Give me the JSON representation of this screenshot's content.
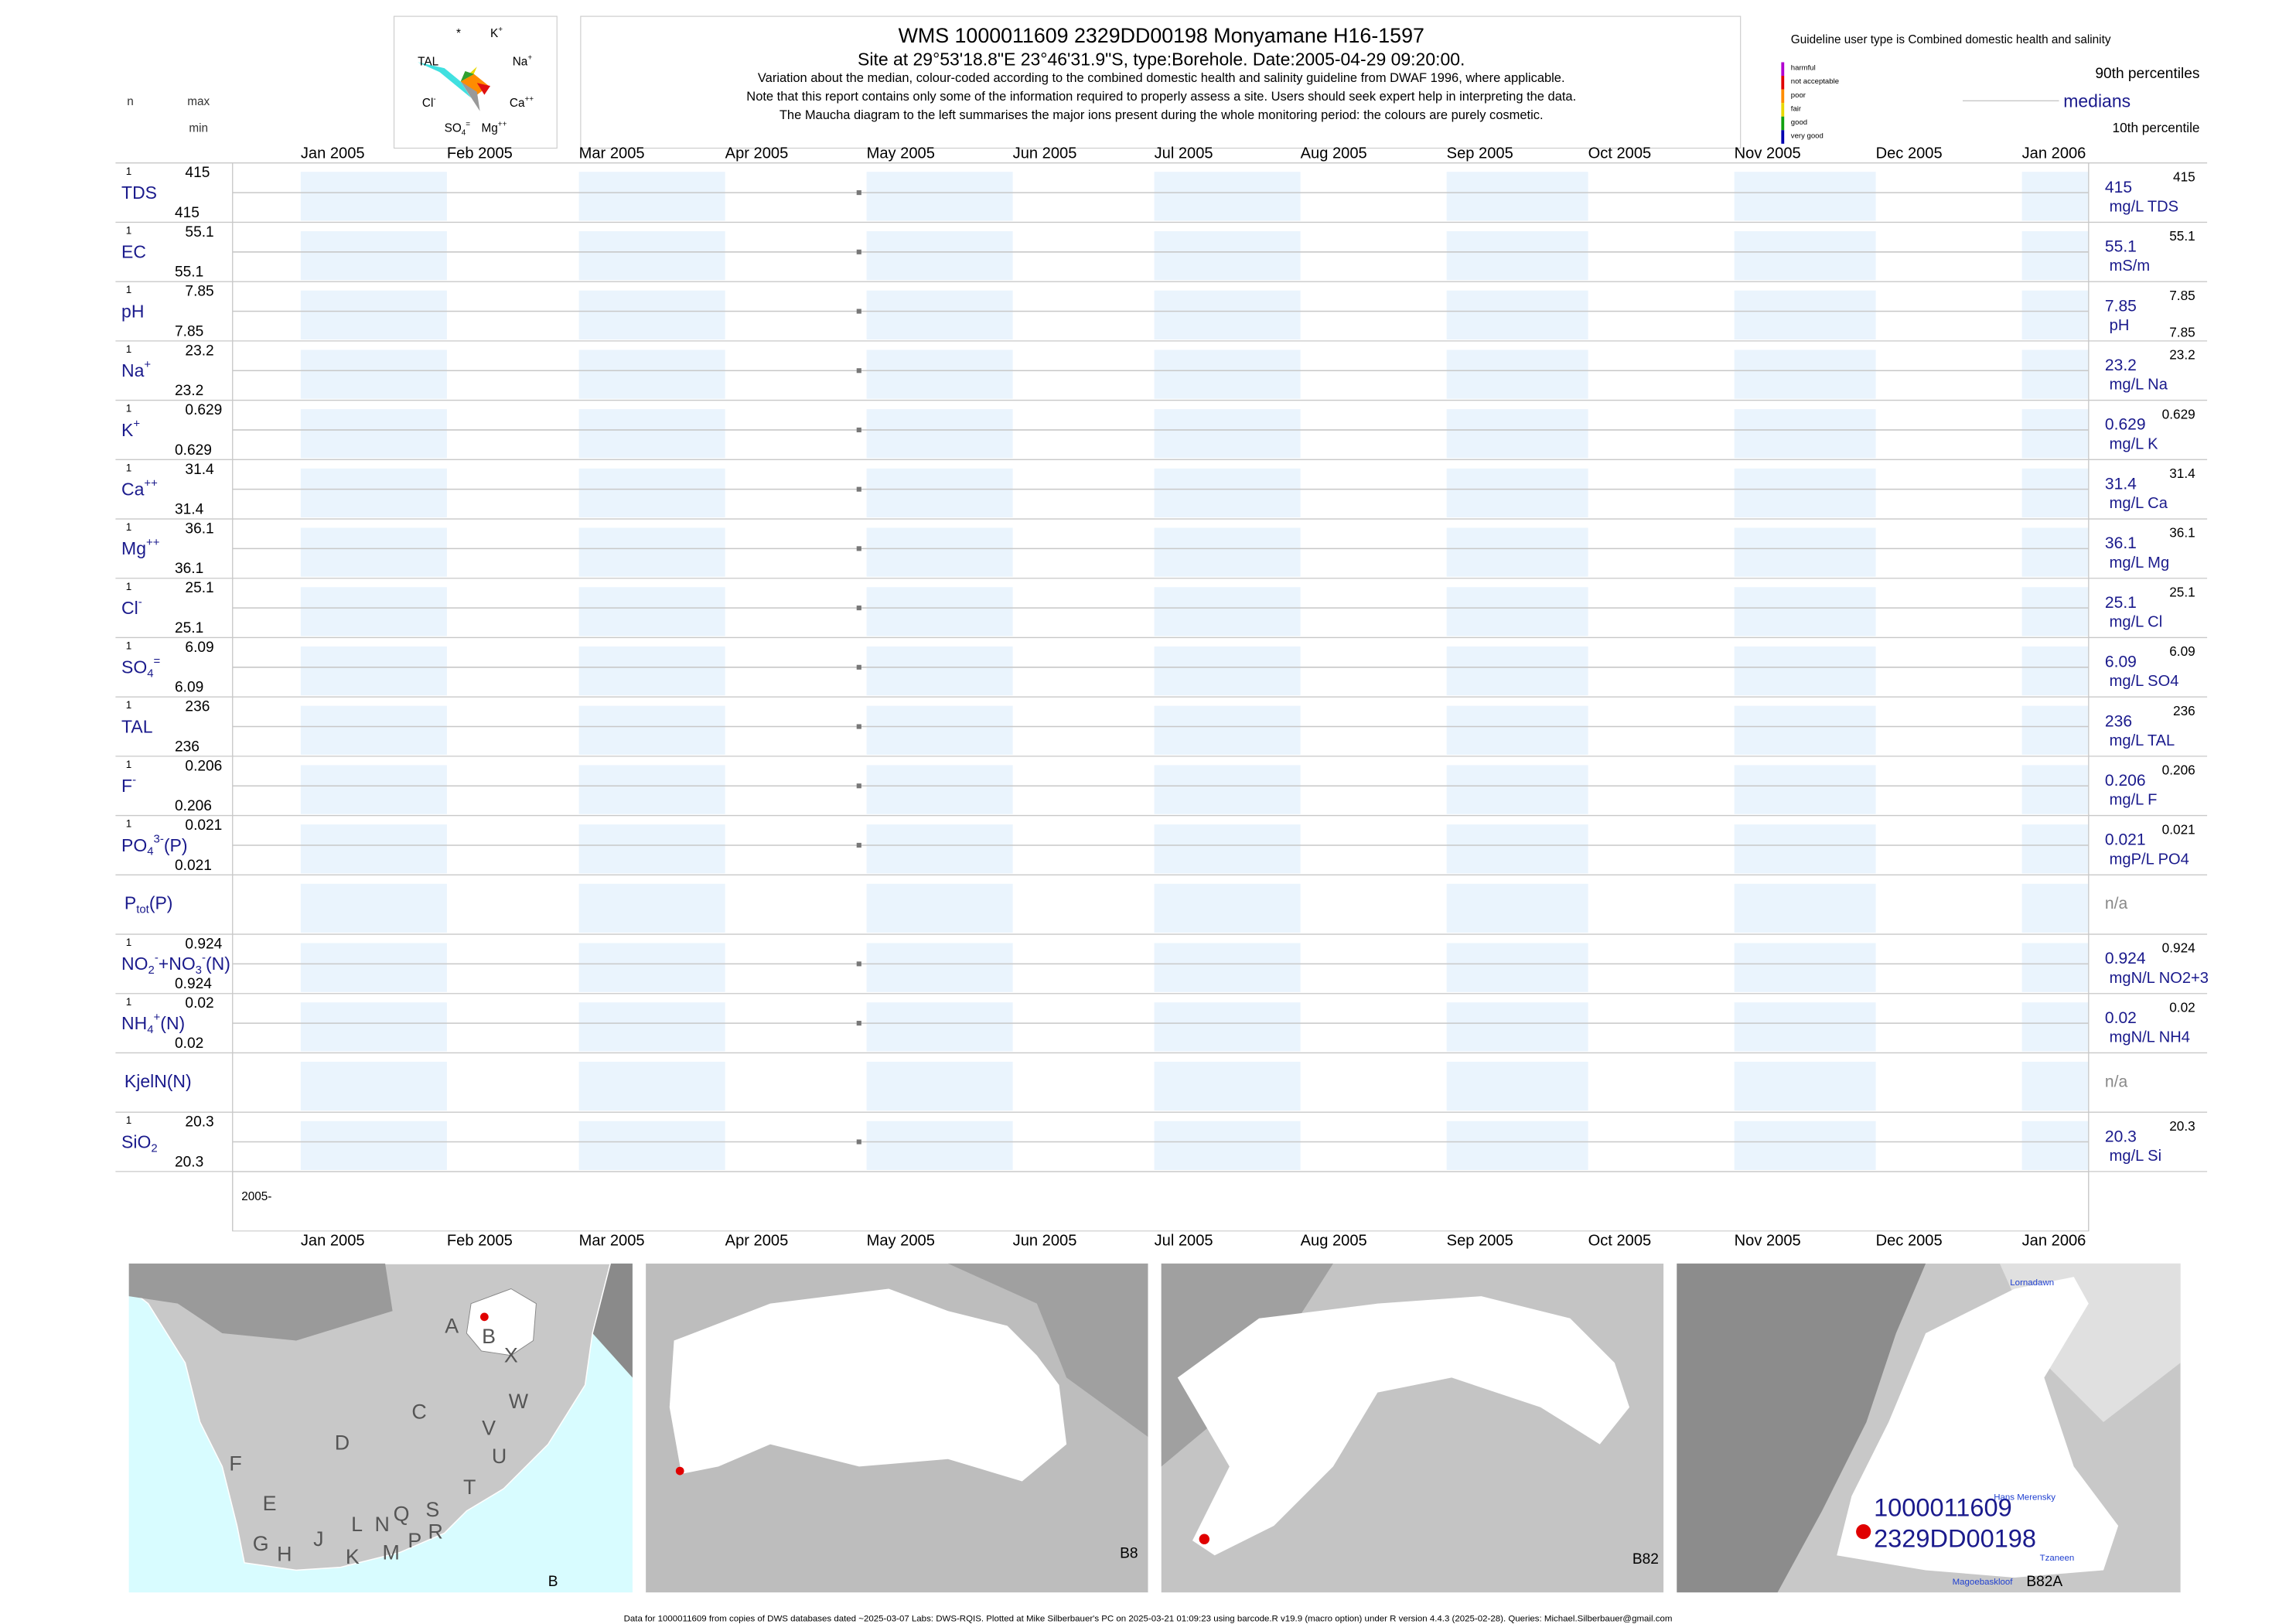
{
  "header": {
    "title": "WMS 1000011609 2329DD00198 Monyamane H16-1597",
    "subtitle": "Site at 29°53'18.8\"E 23°46'31.9\"S, type:Borehole. Date:2005-04-29 09:20:00.",
    "notes": [
      "Variation about the median,  colour-coded according to the combined domestic health and salinity guideline from DWAF 1996, where applicable.",
      "Note that this report contains only some of the information required to properly assess a site. Users should seek expert help in interpreting the data.",
      "The Maucha diagram to the left summarises the major ions present during the whole monitoring period: the colours are purely cosmetic."
    ]
  },
  "maucha": {
    "labels": [
      [
        {
          "text": "*"
        }
      ],
      [
        {
          "text": "K"
        },
        {
          "text": "+",
          "pos": "sup"
        }
      ],
      [
        {
          "text": "TAL"
        }
      ],
      [
        {
          "text": "Na"
        },
        {
          "text": "+",
          "pos": "sup"
        }
      ],
      [
        {
          "text": "Cl"
        },
        {
          "text": "-",
          "pos": "sup"
        }
      ],
      [
        {
          "text": "Ca"
        },
        {
          "text": "++",
          "pos": "sup"
        }
      ],
      [
        {
          "text": "SO"
        },
        {
          "text": "4",
          "pos": "sub"
        },
        {
          "text": "=",
          "pos": "sup"
        }
      ],
      [
        {
          "text": "Mg"
        },
        {
          "text": "++",
          "pos": "sup"
        }
      ]
    ]
  },
  "guideline": {
    "title": "Guideline user type is Combined domestic health and salinity",
    "classes": [
      {
        "name": "harmful",
        "color": "#b000d0"
      },
      {
        "name": "not acceptable",
        "color": "#e00000"
      },
      {
        "name": "poor",
        "color": "#ff8c00"
      },
      {
        "name": "fair",
        "color": "#e8d800"
      },
      {
        "name": "good",
        "color": "#10a010"
      },
      {
        "name": "very good",
        "color": "#0000b0"
      }
    ],
    "p90": "90th percentiles",
    "median": "medians",
    "p10": "10th percentile"
  },
  "columns": {
    "n": "n",
    "max": "max",
    "min": "min"
  },
  "chart_data": {
    "type": "timeline",
    "months": [
      "Jan 2005",
      "Feb 2005",
      "Mar 2005",
      "Apr 2005",
      "May 2005",
      "Jun 2005",
      "Jul 2005",
      "Aug 2005",
      "Sep 2005",
      "Oct 2005",
      "Nov 2005",
      "Dec 2005",
      "Jan 2006"
    ],
    "x": "2005-04-29 09:20:00",
    "x_axis_label": "2005-",
    "rows": [
      {
        "label": [
          {
            "text": "TDS"
          }
        ],
        "n": 1,
        "max": 415,
        "min": 415,
        "median": 415,
        "unit": "mg/L TDS",
        "p90": 415,
        "values": [
          415
        ]
      },
      {
        "label": [
          {
            "text": "EC"
          }
        ],
        "n": 1,
        "max": 55.1,
        "min": 55.1,
        "median": 55.1,
        "unit": "mS/m",
        "p90": 55.1,
        "values": [
          55.1
        ]
      },
      {
        "label": [
          {
            "text": "pH"
          }
        ],
        "n": 1,
        "max": 7.85,
        "min": 7.85,
        "median": 7.85,
        "unit": "pH",
        "p90": 7.85,
        "p10": 7.85,
        "values": [
          7.85
        ]
      },
      {
        "label": [
          {
            "text": "Na"
          },
          {
            "text": "+",
            "pos": "sup"
          }
        ],
        "n": 1,
        "max": 23.2,
        "min": 23.2,
        "median": 23.2,
        "unit": "mg/L Na",
        "p90": 23.2,
        "values": [
          23.2
        ]
      },
      {
        "label": [
          {
            "text": "K"
          },
          {
            "text": "+",
            "pos": "sup"
          }
        ],
        "n": 1,
        "max": 0.629,
        "min": 0.629,
        "median": 0.629,
        "unit": "mg/L K",
        "p90": 0.629,
        "values": [
          0.629
        ]
      },
      {
        "label": [
          {
            "text": "Ca"
          },
          {
            "text": "++",
            "pos": "sup"
          }
        ],
        "n": 1,
        "max": 31.4,
        "min": 31.4,
        "median": 31.4,
        "unit": "mg/L Ca",
        "p90": 31.4,
        "values": [
          31.4
        ]
      },
      {
        "label": [
          {
            "text": "Mg"
          },
          {
            "text": "++",
            "pos": "sup"
          }
        ],
        "n": 1,
        "max": 36.1,
        "min": 36.1,
        "median": 36.1,
        "unit": "mg/L Mg",
        "p90": 36.1,
        "values": [
          36.1
        ]
      },
      {
        "label": [
          {
            "text": "Cl"
          },
          {
            "text": "-",
            "pos": "sup"
          }
        ],
        "n": 1,
        "max": 25.1,
        "min": 25.1,
        "median": 25.1,
        "unit": "mg/L Cl",
        "p90": 25.1,
        "values": [
          25.1
        ]
      },
      {
        "label": [
          {
            "text": "SO"
          },
          {
            "text": "4",
            "pos": "sub"
          },
          {
            "text": "=",
            "pos": "sup"
          }
        ],
        "n": 1,
        "max": 6.09,
        "min": 6.09,
        "median": 6.09,
        "unit": "mg/L SO4",
        "p90": 6.09,
        "values": [
          6.09
        ]
      },
      {
        "label": [
          {
            "text": "TAL"
          }
        ],
        "n": 1,
        "max": 236,
        "min": 236,
        "median": 236,
        "unit": "mg/L TAL",
        "p90": 236,
        "values": [
          236
        ]
      },
      {
        "label": [
          {
            "text": "F"
          },
          {
            "text": "-",
            "pos": "sup"
          }
        ],
        "n": 1,
        "max": 0.206,
        "min": 0.206,
        "median": 0.206,
        "unit": "mg/L F",
        "p90": 0.206,
        "values": [
          0.206
        ]
      },
      {
        "label": [
          {
            "text": "PO"
          },
          {
            "text": "4",
            "pos": "sub"
          },
          {
            "text": "3-",
            "pos": "sup"
          },
          {
            "text": "(P)"
          }
        ],
        "n": 1,
        "max": 0.021,
        "min": 0.021,
        "median": 0.021,
        "unit": "mgP/L PO4",
        "p90": 0.021,
        "values": [
          0.021
        ]
      },
      {
        "label": [
          {
            "text": "P"
          },
          {
            "text": "tot",
            "pos": "sub"
          },
          {
            "text": "(P)"
          }
        ],
        "median": "n/a"
      },
      {
        "label": [
          {
            "text": "NO"
          },
          {
            "text": "2",
            "pos": "sub"
          },
          {
            "text": "-",
            "pos": "sup"
          },
          {
            "text": "+NO"
          },
          {
            "text": "3",
            "pos": "sub"
          },
          {
            "text": "-",
            "pos": "sup"
          },
          {
            "text": "(N)"
          }
        ],
        "n": 1,
        "max": 0.924,
        "min": 0.924,
        "median": 0.924,
        "unit": "mgN/L NO2+3",
        "p90": 0.924,
        "values": [
          0.924
        ]
      },
      {
        "label": [
          {
            "text": "NH"
          },
          {
            "text": "4",
            "pos": "sub"
          },
          {
            "text": "+",
            "pos": "sup"
          },
          {
            "text": "(N)"
          }
        ],
        "n": 1,
        "max": 0.02,
        "min": 0.02,
        "median": 0.02,
        "unit": "mgN/L NH4",
        "p90": 0.02,
        "values": [
          0.02
        ]
      },
      {
        "label": [
          {
            "text": "KjelN(N)"
          }
        ],
        "median": "n/a"
      },
      {
        "label": [
          {
            "text": "SiO"
          },
          {
            "text": "2",
            "pos": "sub"
          }
        ],
        "n": 1,
        "max": 20.3,
        "min": 20.3,
        "median": 20.3,
        "unit": "mg/L Si",
        "p90": 20.3,
        "values": [
          20.3
        ]
      }
    ]
  },
  "maps": {
    "regions": [
      "A",
      "B",
      "X",
      "W",
      "C",
      "V",
      "U",
      "D",
      "T",
      "F",
      "E",
      "S",
      "Q",
      "N",
      "L",
      "R",
      "P",
      "M",
      "K",
      "J",
      "G",
      "H"
    ],
    "panel_labels": [
      "B",
      "B8",
      "B82",
      "B82A"
    ],
    "site_labels": [
      "1000011609",
      "2329DD00198"
    ],
    "places": [
      "Lornadawn",
      "Hans Merensky",
      "Tzaneen",
      "Magoebaskloof"
    ]
  },
  "footer": "Data for 1000011609 from copies of DWS databases dated ~2025-03-07 Labs: DWS-RQIS. Plotted at Mike Silberbauer's PC on 2025-03-21 01:09:23 using barcode.R v19.9 (macro option) under R version 4.4.3 (2025-02-28). Queries: Michael.Silberbauer@gmail.com"
}
